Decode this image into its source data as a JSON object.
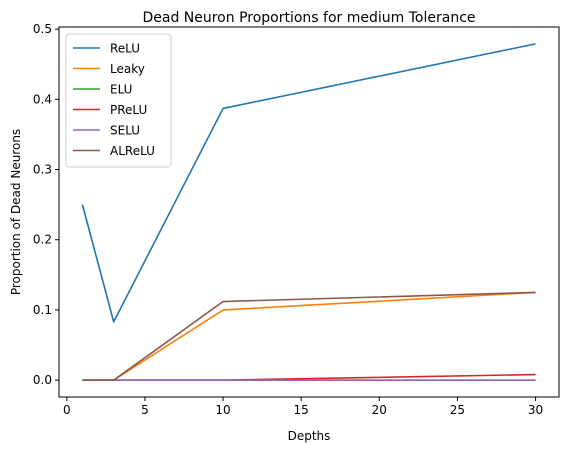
{
  "chart_data": {
    "type": "line",
    "title": "Dead Neuron Proportions for medium Tolerance",
    "xlabel": "Depths",
    "ylabel": "Proportion of Dead Neurons",
    "x": [
      1,
      3,
      10,
      30
    ],
    "xlim": [
      -0.5,
      31.5
    ],
    "ylim": [
      -0.024,
      0.503
    ],
    "xticks": [
      0,
      5,
      10,
      15,
      20,
      25,
      30
    ],
    "yticks": [
      0.0,
      0.1,
      0.2,
      0.3,
      0.4,
      0.5
    ],
    "ytick_labels": [
      "0.0",
      "0.1",
      "0.2",
      "0.3",
      "0.4",
      "0.5"
    ],
    "grid": false,
    "legend_position": "top-left",
    "series": [
      {
        "name": "ReLU",
        "color": "#1f77b4",
        "values": [
          0.25,
          0.083,
          0.387,
          0.479
        ]
      },
      {
        "name": "Leaky",
        "color": "#ff7f0e",
        "values": [
          0.0,
          0.0,
          0.1,
          0.125
        ]
      },
      {
        "name": "ELU",
        "color": "#2ca02c",
        "values": [
          0.0,
          0.0,
          0.0,
          0.0
        ]
      },
      {
        "name": "PReLU",
        "color": "#d62728",
        "values": [
          0.0,
          0.0,
          0.0,
          0.008
        ]
      },
      {
        "name": "SELU",
        "color": "#9467bd",
        "values": [
          0.0,
          0.0,
          0.0,
          0.0
        ]
      },
      {
        "name": "ALReLU",
        "color": "#8c564b",
        "values": [
          0.0,
          0.0,
          0.112,
          0.125
        ]
      }
    ]
  }
}
